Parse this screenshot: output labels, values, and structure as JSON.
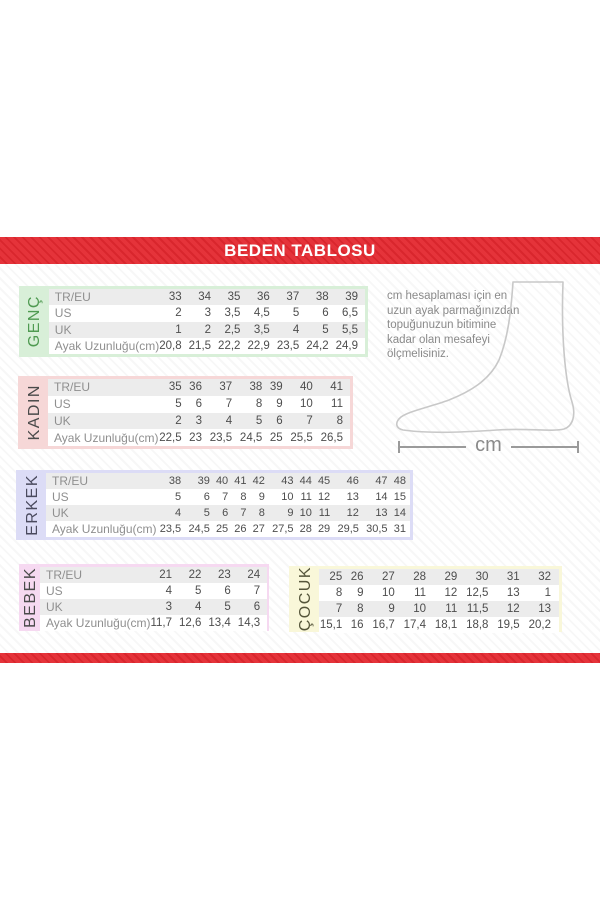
{
  "header": {
    "title": "BEDEN TABLOSU"
  },
  "theme": {
    "band_red": "#e5333a",
    "band_red_stripe": "#d9262d",
    "row_stripe": "#ececec",
    "number_text": "#4d4d4d",
    "label_text": "#8f8f8f"
  },
  "chart_data": [
    {
      "type": "table",
      "title": "GENÇ",
      "frame_color": "#d8efd8",
      "label_color": "#4f9a51",
      "row_labels": [
        "TR/EU",
        "US",
        "UK",
        "Ayak Uzunluğu(cm)"
      ],
      "rows": [
        [
          "33",
          "34",
          "35",
          "36",
          "37",
          "38",
          "39"
        ],
        [
          "2",
          "3",
          "3,5",
          "4,5",
          "5",
          "6",
          "6,5"
        ],
        [
          "1",
          "2",
          "2,5",
          "3,5",
          "4",
          "5",
          "5,5"
        ],
        [
          "20,8",
          "21,5",
          "22,2",
          "22,9",
          "23,5",
          "24,2",
          "24,9"
        ]
      ]
    },
    {
      "type": "table",
      "title": "KADIN",
      "frame_color": "#f6d7d7",
      "label_color": "#4a4a4a",
      "row_labels": [
        "TR/EU",
        "US",
        "UK",
        "Ayak Uzunluğu(cm)"
      ],
      "rows": [
        [
          "35",
          "36",
          "37",
          "38",
          "39",
          "40",
          "41"
        ],
        [
          "5",
          "6",
          "7",
          "8",
          "9",
          "10",
          "11"
        ],
        [
          "2",
          "3",
          "4",
          "5",
          "6",
          "7",
          "8"
        ],
        [
          "22,5",
          "23",
          "23,5",
          "24,5",
          "25",
          "25,5",
          "26,5"
        ]
      ]
    },
    {
      "type": "table",
      "title": "ERKEK",
      "frame_color": "#dcdcf6",
      "label_color": "#4a4a5e",
      "row_labels": [
        "TR/EU",
        "US",
        "UK",
        "Ayak Uzunluğu(cm)"
      ],
      "rows": [
        [
          "38",
          "39",
          "40",
          "41",
          "42",
          "43",
          "44",
          "45",
          "46",
          "47",
          "48"
        ],
        [
          "5",
          "6",
          "7",
          "8",
          "9",
          "10",
          "11",
          "12",
          "13",
          "14",
          "15"
        ],
        [
          "4",
          "5",
          "6",
          "7",
          "8",
          "9",
          "10",
          "11",
          "12",
          "13",
          "14"
        ],
        [
          "23,5",
          "24,5",
          "25",
          "26",
          "27",
          "27,5",
          "28",
          "29",
          "29,5",
          "30,5",
          "31"
        ]
      ]
    },
    {
      "type": "table",
      "title": "BEBEK",
      "frame_color": "#f6d9f1",
      "label_color": "#4a4a4a",
      "row_labels": [
        "TR/EU",
        "US",
        "UK",
        "Ayak Uzunluğu(cm)"
      ],
      "rows": [
        [
          "21",
          "22",
          "23",
          "24"
        ],
        [
          "4",
          "5",
          "6",
          "7"
        ],
        [
          "3",
          "4",
          "5",
          "6"
        ],
        [
          "11,7",
          "12,6",
          "13,4",
          "14,3"
        ]
      ]
    },
    {
      "type": "table",
      "title": "ÇOCUK",
      "frame_color": "#f9f7d9",
      "label_color": "#55553a",
      "row_labels": null,
      "rows": [
        [
          "25",
          "26",
          "27",
          "28",
          "29",
          "30",
          "31",
          "32"
        ],
        [
          "8",
          "9",
          "10",
          "11",
          "12",
          "12,5",
          "13",
          "1"
        ],
        [
          "7",
          "8",
          "9",
          "10",
          "11",
          "11,5",
          "12",
          "13"
        ],
        [
          "15,1",
          "16",
          "16,7",
          "17,4",
          "18,1",
          "18,8",
          "19,5",
          "20,2"
        ]
      ]
    }
  ],
  "note": {
    "text": "cm hesaplaması için en\nuzun ayak parmağınızdan\ntopuğunuzun bitimine\nkadar olan mesafeyi\nölçmelisiniz."
  },
  "diagram": {
    "unit_label": "cm"
  }
}
